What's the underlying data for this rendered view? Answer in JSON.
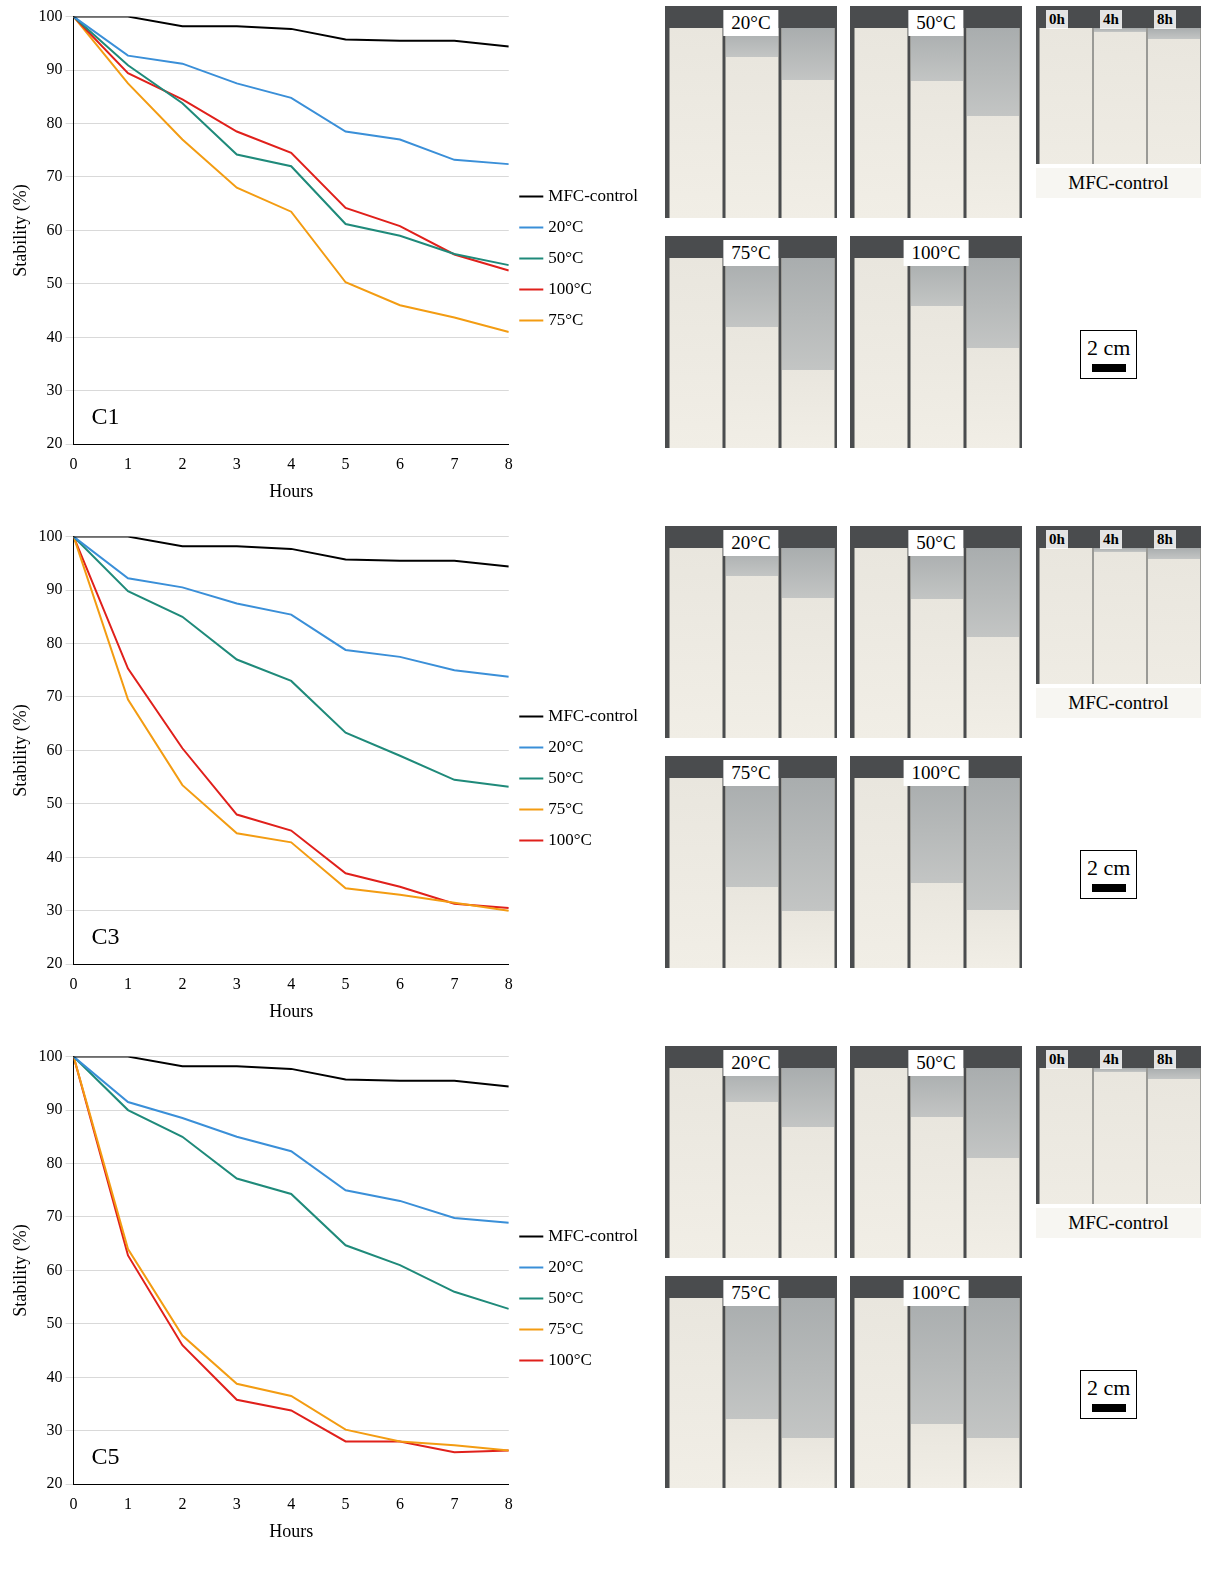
{
  "chart_data": [
    {
      "type": "line",
      "annotation": "C1",
      "x_label": "Hours",
      "y_label": "Stability (%)",
      "x": [
        0,
        1,
        2,
        3,
        4,
        5,
        6,
        7,
        8
      ],
      "xlim": [
        0,
        8
      ],
      "xticks": [
        0,
        1,
        2,
        3,
        4,
        5,
        6,
        7,
        8
      ],
      "ylim": [
        20,
        100
      ],
      "yticks": [
        20,
        30,
        40,
        50,
        60,
        70,
        80,
        90,
        100
      ],
      "grid": true,
      "legend": "right",
      "series": [
        {
          "name": "MFC-control",
          "color": "#000000",
          "values": [
            100,
            100,
            98.2,
            98.2,
            97.7,
            95.7,
            95.5,
            95.5,
            94.4
          ]
        },
        {
          "name": "20°C",
          "color": "#3a8fd8",
          "values": [
            100,
            92.7,
            91.2,
            87.5,
            84.8,
            78.5,
            77,
            73.2,
            72.4
          ]
        },
        {
          "name": "50°C",
          "color": "#1f8a7a",
          "values": [
            100,
            90.9,
            83.8,
            74.2,
            72,
            61.2,
            59,
            55.6,
            53.5
          ]
        },
        {
          "name": "100°C",
          "color": "#e0201b",
          "values": [
            100,
            89.4,
            84.5,
            78.5,
            74.5,
            64.2,
            60.8,
            55.5,
            52.5
          ]
        },
        {
          "name": "75°C",
          "color": "#f39c12",
          "values": [
            100,
            87.5,
            77,
            68,
            63.5,
            50.3,
            46,
            43.7,
            41
          ]
        }
      ]
    },
    {
      "type": "line",
      "annotation": "C3",
      "x_label": "Hours",
      "y_label": "Stability (%)",
      "x": [
        0,
        1,
        2,
        3,
        4,
        5,
        6,
        7,
        8
      ],
      "xlim": [
        0,
        8
      ],
      "xticks": [
        0,
        1,
        2,
        3,
        4,
        5,
        6,
        7,
        8
      ],
      "ylim": [
        20,
        100
      ],
      "yticks": [
        20,
        30,
        40,
        50,
        60,
        70,
        80,
        90,
        100
      ],
      "grid": true,
      "legend": "right",
      "series": [
        {
          "name": "MFC-control",
          "color": "#000000",
          "values": [
            100,
            100,
            98.2,
            98.2,
            97.7,
            95.7,
            95.5,
            95.5,
            94.4
          ]
        },
        {
          "name": "20°C",
          "color": "#3a8fd8",
          "values": [
            100,
            92.2,
            90.5,
            87.5,
            85.4,
            78.8,
            77.5,
            75,
            73.8
          ]
        },
        {
          "name": "50°C",
          "color": "#1f8a7a",
          "values": [
            100,
            89.8,
            85,
            77,
            73,
            63.3,
            59,
            54.5,
            53.2
          ]
        },
        {
          "name": "75°C",
          "color": "#f39c12",
          "values": [
            100,
            69.5,
            53.5,
            44.5,
            42.8,
            34.2,
            33,
            31.5,
            30
          ]
        },
        {
          "name": "100°C",
          "color": "#e0201b",
          "values": [
            100,
            75.3,
            60.4,
            48,
            45,
            37,
            34.5,
            31.3,
            30.5
          ]
        }
      ]
    },
    {
      "type": "line",
      "annotation": "C5",
      "x_label": "Hours",
      "y_label": "Stability (%)",
      "x": [
        0,
        1,
        2,
        3,
        4,
        5,
        6,
        7,
        8
      ],
      "xlim": [
        0,
        8
      ],
      "xticks": [
        0,
        1,
        2,
        3,
        4,
        5,
        6,
        7,
        8
      ],
      "ylim": [
        20,
        100
      ],
      "yticks": [
        20,
        30,
        40,
        50,
        60,
        70,
        80,
        90,
        100
      ],
      "grid": true,
      "legend": "right",
      "series": [
        {
          "name": "MFC-control",
          "color": "#000000",
          "values": [
            100,
            100,
            98.2,
            98.2,
            97.7,
            95.7,
            95.5,
            95.5,
            94.4
          ]
        },
        {
          "name": "20°C",
          "color": "#3a8fd8",
          "values": [
            100,
            91.5,
            88.5,
            85,
            82.3,
            75,
            73,
            69.8,
            68.9
          ]
        },
        {
          "name": "50°C",
          "color": "#1f8a7a",
          "values": [
            100,
            90,
            85,
            77.2,
            74.3,
            64.7,
            61,
            56,
            52.8
          ]
        },
        {
          "name": "75°C",
          "color": "#f39c12",
          "values": [
            100,
            64,
            47.8,
            38.8,
            36.5,
            30.2,
            28,
            27.3,
            26.3
          ]
        },
        {
          "name": "100°C",
          "color": "#e0201b",
          "values": [
            100,
            62.8,
            46,
            35.8,
            33.8,
            28,
            28,
            26,
            26.3
          ]
        }
      ]
    }
  ],
  "photos": {
    "groups": [
      "20°C",
      "50°C",
      "75°C",
      "100°C"
    ],
    "control": {
      "caption": "MFC-control",
      "labels": [
        "0h",
        "4h",
        "8h"
      ]
    },
    "scale_bar": "2 cm"
  }
}
